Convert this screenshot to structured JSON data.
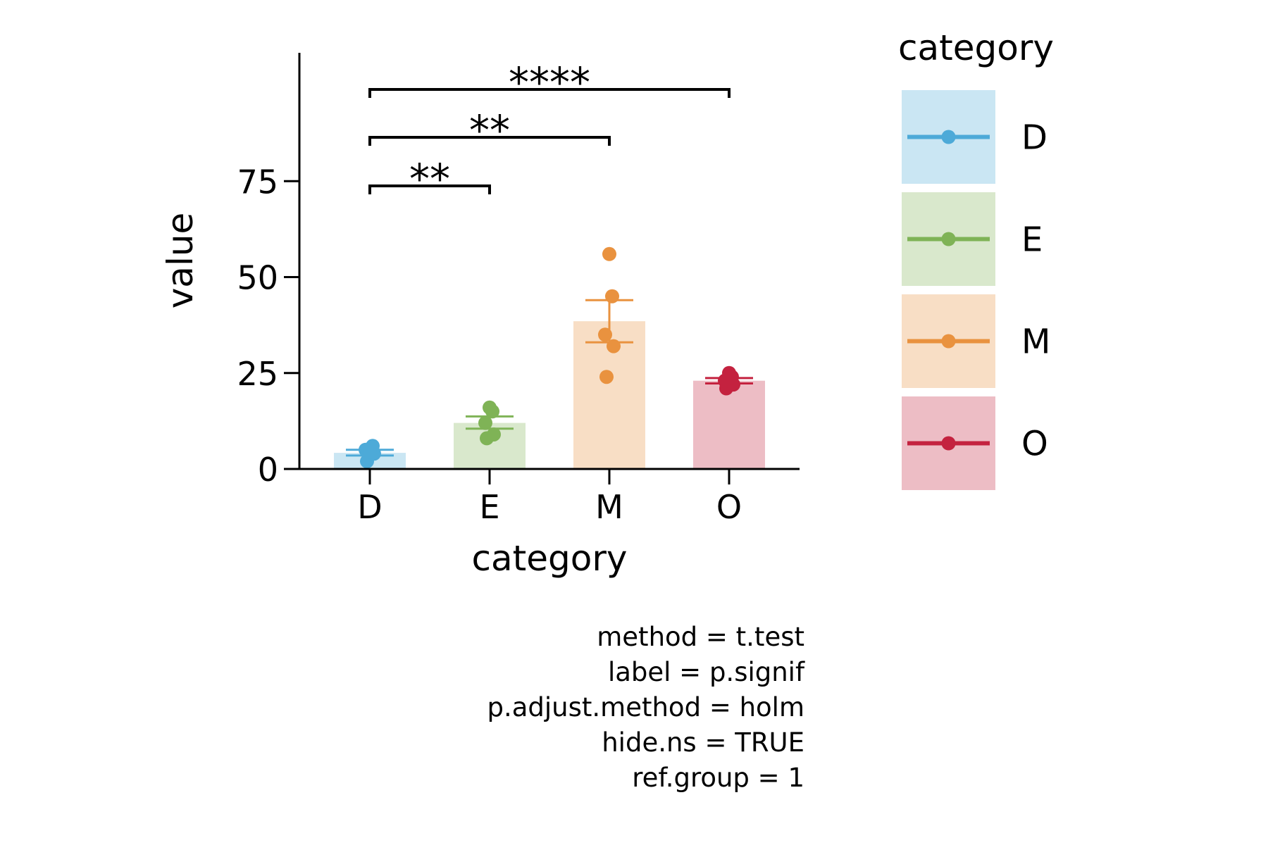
{
  "chart_data": {
    "type": "bar",
    "xlabel": "category",
    "ylabel": "value",
    "categories": [
      "D",
      "E",
      "M",
      "O"
    ],
    "colors": [
      "#4DAAD8",
      "#7FB356",
      "#E9923F",
      "#C4223F"
    ],
    "ylim": [
      0,
      94
    ],
    "yticks": [
      0,
      25,
      50,
      75
    ],
    "bars": [
      {
        "category": "D",
        "mean": 4.2,
        "error_low": 3.5,
        "error_high": 5.0,
        "points": [
          2.0,
          4.0,
          5.0,
          6.0,
          4.5
        ]
      },
      {
        "category": "E",
        "mean": 12.0,
        "error_low": 10.5,
        "error_high": 13.7,
        "points": [
          8.0,
          9.0,
          12.0,
          15.0,
          16.0
        ]
      },
      {
        "category": "M",
        "mean": 38.5,
        "error_low": 33.0,
        "error_high": 44.0,
        "points": [
          24.0,
          32.0,
          35.0,
          45.0,
          56.0
        ]
      },
      {
        "category": "O",
        "mean": 23.0,
        "error_low": 22.3,
        "error_high": 23.7,
        "points": [
          21.0,
          22.0,
          23.0,
          24.0,
          25.0
        ]
      }
    ],
    "comparisons": [
      {
        "group1": "D",
        "group2": "E",
        "label": "**"
      },
      {
        "group1": "D",
        "group2": "M",
        "label": "**"
      },
      {
        "group1": "D",
        "group2": "O",
        "label": "****"
      }
    ],
    "legend": {
      "title": "category",
      "position": "right",
      "entries": [
        "D",
        "E",
        "M",
        "O"
      ]
    },
    "grid": false
  },
  "caption": [
    "method = t.test",
    "label = p.signif",
    "p.adjust.method = holm",
    "hide.ns = TRUE",
    "ref.group = 1"
  ]
}
